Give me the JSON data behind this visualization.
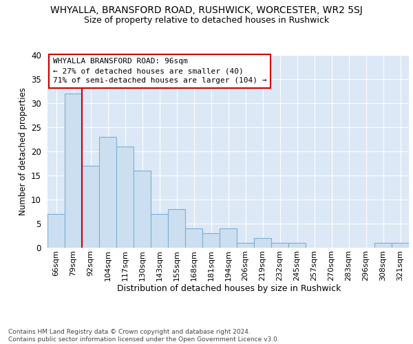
{
  "title": "WHYALLA, BRANSFORD ROAD, RUSHWICK, WORCESTER, WR2 5SJ",
  "subtitle": "Size of property relative to detached houses in Rushwick",
  "xlabel": "Distribution of detached houses by size in Rushwick",
  "ylabel": "Number of detached properties",
  "categories": [
    "66sqm",
    "79sqm",
    "92sqm",
    "104sqm",
    "117sqm",
    "130sqm",
    "143sqm",
    "155sqm",
    "168sqm",
    "181sqm",
    "194sqm",
    "206sqm",
    "219sqm",
    "232sqm",
    "245sqm",
    "257sqm",
    "270sqm",
    "283sqm",
    "296sqm",
    "308sqm",
    "321sqm"
  ],
  "values": [
    7,
    32,
    17,
    23,
    21,
    16,
    7,
    8,
    4,
    3,
    4,
    1,
    2,
    1,
    1,
    0,
    0,
    0,
    0,
    1,
    1
  ],
  "bar_color": "#ccdff0",
  "bar_edge_color": "#7aafd4",
  "vline_after_index": 1,
  "vline_color": "#cc0000",
  "annotation_title": "WHYALLA BRANSFORD ROAD: 96sqm",
  "annotation_line2": "← 27% of detached houses are smaller (40)",
  "annotation_line3": "71% of semi-detached houses are larger (104) →",
  "ylim": [
    0,
    40
  ],
  "yticks": [
    0,
    5,
    10,
    15,
    20,
    25,
    30,
    35,
    40
  ],
  "plot_bg_color": "#dce8f5",
  "grid_color": "#ffffff",
  "footer_line1": "Contains HM Land Registry data © Crown copyright and database right 2024.",
  "footer_line2": "Contains public sector information licensed under the Open Government Licence v3.0."
}
